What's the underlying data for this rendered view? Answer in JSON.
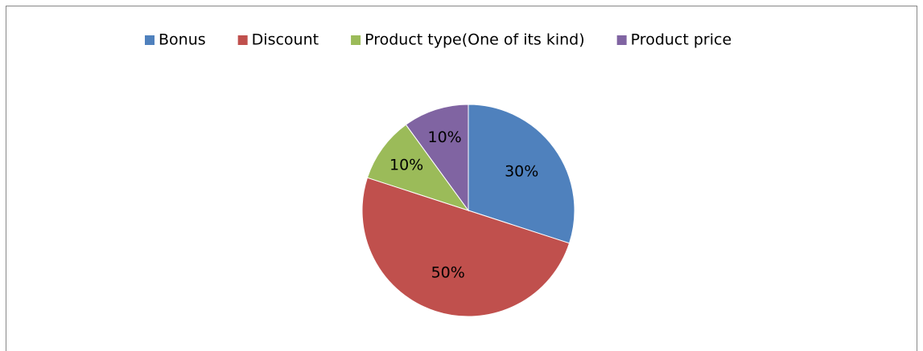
{
  "chart_data": {
    "type": "pie",
    "categories": [
      "Bonus",
      "Discount",
      "Product type(One of its kind)",
      "Product price"
    ],
    "values": [
      30,
      50,
      10,
      10
    ],
    "value_labels": [
      "30%",
      "50%",
      "10%",
      "10%"
    ],
    "colors": [
      "#4f81bd",
      "#c0504d",
      "#9bbb59",
      "#8064a2"
    ],
    "legend": "top"
  }
}
